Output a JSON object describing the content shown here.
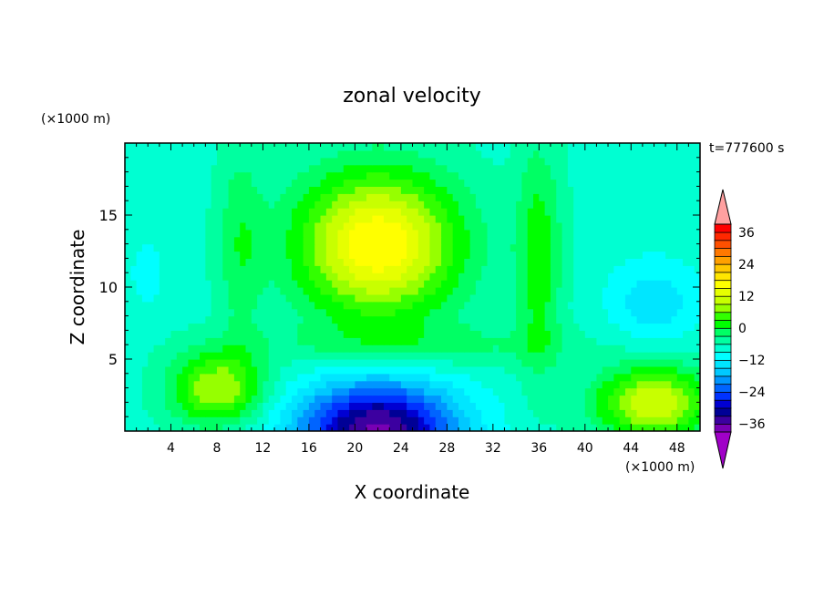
{
  "chart_data": {
    "type": "heatmap",
    "title": "zonal velocity",
    "xlabel": "X coordinate",
    "ylabel": "Z coordinate",
    "x_unit": "(×1000 m)",
    "y_unit": "(×1000 m)",
    "time_label": "t=777600 s",
    "xlim": [
      0,
      50
    ],
    "ylim": [
      0,
      20
    ],
    "x_ticks": [
      4,
      8,
      12,
      16,
      20,
      24,
      28,
      32,
      36,
      40,
      44,
      48
    ],
    "y_ticks": [
      5,
      10,
      15
    ],
    "colorbar": {
      "levels": [
        -42,
        -39,
        -36,
        -33,
        -30,
        -27,
        -24,
        -21,
        -18,
        -15,
        -12,
        -9,
        -6,
        -3,
        0,
        3,
        6,
        9,
        12,
        15,
        18,
        21,
        24,
        27,
        30,
        33,
        36,
        39,
        42
      ],
      "labels": [
        36,
        24,
        12,
        0,
        -12,
        -24,
        -36
      ],
      "label_text": [
        "36",
        "24",
        "12",
        "0",
        "−12",
        "−24",
        "−36"
      ],
      "colors": [
        "#a000c8",
        "#7800b4",
        "#3c00a0",
        "#000096",
        "#0000d2",
        "#0032ff",
        "#0064ff",
        "#0096ff",
        "#00c8ff",
        "#00e6ff",
        "#00ffff",
        "#00ffd2",
        "#00ffa0",
        "#00ff64",
        "#00ff00",
        "#32ff00",
        "#96ff00",
        "#c8ff00",
        "#e6ff00",
        "#ffff00",
        "#ffe600",
        "#ffc800",
        "#ffa000",
        "#ff7800",
        "#ff5000",
        "#ff2800",
        "#ff0000",
        "#ffa0a0"
      ],
      "under_color": "#a000c8",
      "over_color": "#ffa0a0"
    },
    "field_model": {
      "background": -7,
      "features": [
        {
          "x": 22,
          "z": 13,
          "amp": 25,
          "sx": 7,
          "sz": 5
        },
        {
          "x": 22,
          "z": 0,
          "amp": -30,
          "sx": 7,
          "sz": 3.5
        },
        {
          "x": 36,
          "z": 12,
          "amp": 9,
          "sx": 2,
          "sz": 8
        },
        {
          "x": 10,
          "z": 13,
          "amp": 6,
          "sx": 2,
          "sz": 7
        },
        {
          "x": 46,
          "z": 9,
          "amp": -7,
          "sx": 4,
          "sz": 3
        },
        {
          "x": 2,
          "z": 11,
          "amp": -3,
          "sx": 2,
          "sz": 3
        },
        {
          "x": 8,
          "z": 3,
          "amp": 16,
          "sx": 4,
          "sz": 2.5
        },
        {
          "x": 46,
          "z": 2,
          "amp": 19,
          "sx": 5,
          "sz": 2.5
        },
        {
          "x": 25,
          "z": 6,
          "amp": 5,
          "sx": 14,
          "sz": 1.5
        }
      ]
    }
  }
}
